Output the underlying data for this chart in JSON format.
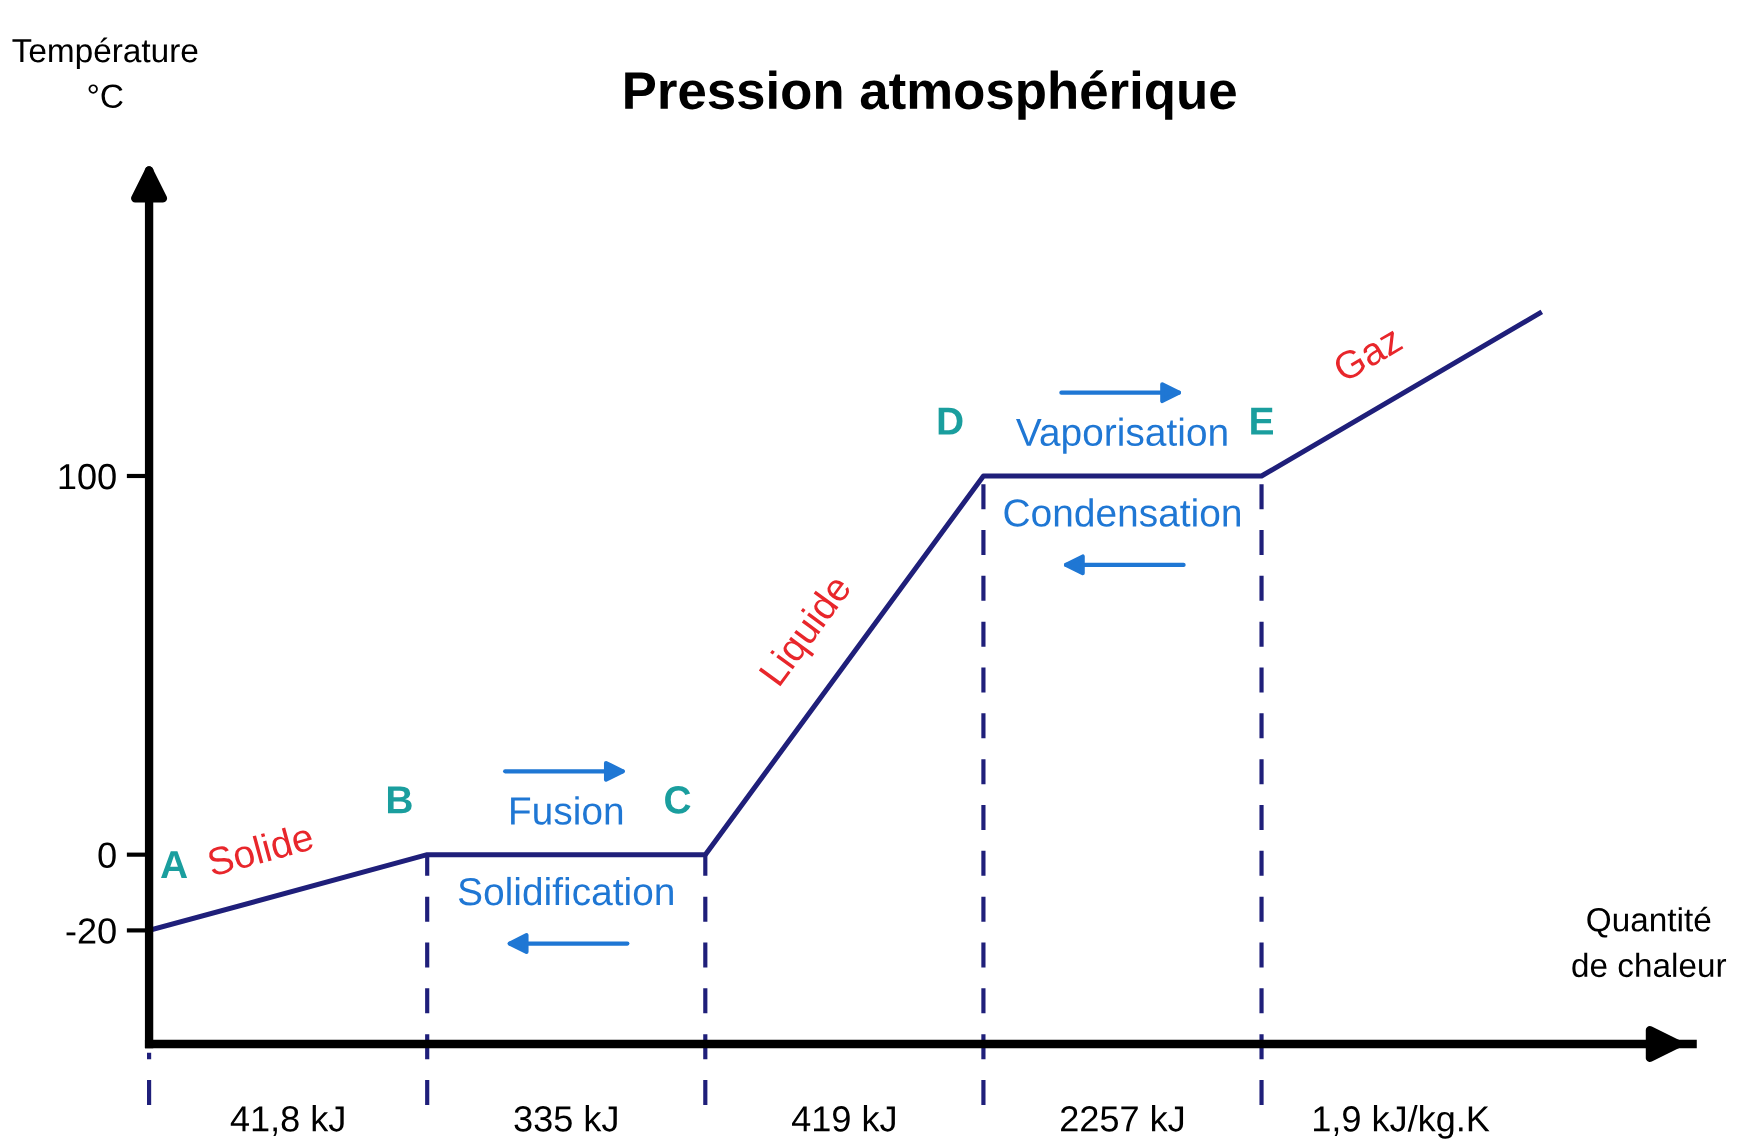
{
  "chart_data": {
    "type": "line",
    "title": "Pression atmosphérique",
    "ylabel": "Température\n°C",
    "xlabel": "Quantité\nde chaleur",
    "categories": [
      null,
      null,
      null,
      null,
      null,
      null
    ],
    "series": [
      {
        "color": "#1f1f7a",
        "values": [
          -20,
          0,
          0,
          100,
          100,
          143
        ]
      }
    ],
    "ylim": [
      -50,
      180
    ],
    "yticks": [
      -20,
      0,
      100
    ],
    "tick_labels": "y",
    "grid": false,
    "legend": false,
    "marker": "none",
    "line_style": "solid",
    "annotations": [
      "A",
      "B",
      "C",
      "D",
      "E",
      "Solide",
      "Liquide",
      "Gaz",
      "Fusion",
      "Solidification",
      "Vaporisation",
      "Condensation",
      "41,8 kJ",
      "335 kJ",
      "419 kJ",
      "2257 kJ",
      "1,9 kJ/kg.K"
    ]
  }
}
